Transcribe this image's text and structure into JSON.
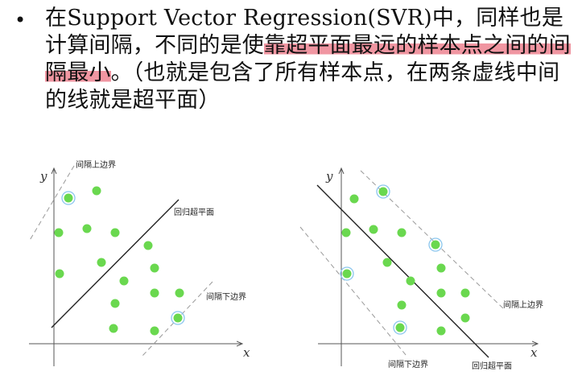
{
  "bullet": "•",
  "text": {
    "seg1": "在",
    "seg2": "Support Vector Regression(SVR)",
    "seg3": "中，同样也是计算间隔，不同的是使",
    "seg4_hl": "靠超平面最远的样本点之间的间隔最小",
    "seg5": "。（也就是包含了所有样本点，在两条虚线中间的线就是超平面）"
  },
  "diagrams": {
    "left": {
      "x_axis_label": "x",
      "y_axis_label": "y",
      "upper_margin_label": "间隔上边界",
      "hyperplane_label": "回归超平面",
      "lower_margin_label": "间隔下边界"
    },
    "right": {
      "x_axis_label": "x",
      "y_axis_label": "y",
      "upper_margin_label": "间隔上边界",
      "lower_margin_label": "间隔下边界",
      "hyperplane_label": "回归超平面"
    }
  },
  "colors": {
    "point": "#6ad84f",
    "support_ring": "#8bc6ee",
    "highlight": "#ec7887",
    "line": "#222222",
    "dashed": "#9a9a9a"
  }
}
